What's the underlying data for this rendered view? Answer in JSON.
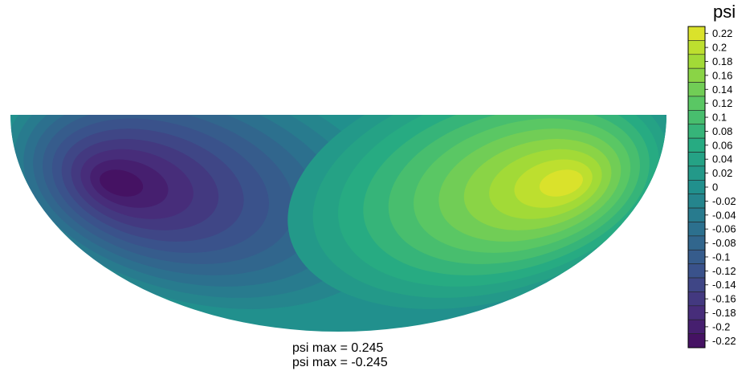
{
  "chart_data": {
    "type": "heatmap",
    "variable": "psi",
    "domain_shape": "half-ellipse (flat top, curved bottom)",
    "colormap": "viridis",
    "range": [
      -0.245,
      0.245
    ],
    "extrema": [
      {
        "sign": "negative",
        "value": -0.245,
        "location": "left lobe"
      },
      {
        "sign": "positive",
        "value": 0.245,
        "location": "right lobe"
      }
    ],
    "colorbar": {
      "title": "psi",
      "levels": [
        -0.22,
        -0.2,
        -0.18,
        -0.16,
        -0.14,
        -0.12,
        -0.1,
        -0.08,
        -0.06,
        -0.04,
        -0.02,
        0,
        0.02,
        0.04,
        0.06,
        0.08,
        0.1,
        0.12,
        0.14,
        0.16,
        0.18,
        0.2,
        0.22
      ],
      "tick_labels": [
        "0.22",
        "0.2",
        "0.18",
        "0.16",
        "0.14",
        "0.12",
        "0.1",
        "0.08",
        "0.06",
        "0.04",
        "0.02",
        "0",
        "-0.02",
        "-0.04",
        "-0.06",
        "-0.08",
        "-0.1",
        "-0.12",
        "-0.14",
        "-0.16",
        "-0.18",
        "-0.2",
        "-0.22"
      ],
      "placement": "right"
    },
    "annotations": [
      "psi max = 0.245",
      "psi max = -0.245"
    ]
  }
}
